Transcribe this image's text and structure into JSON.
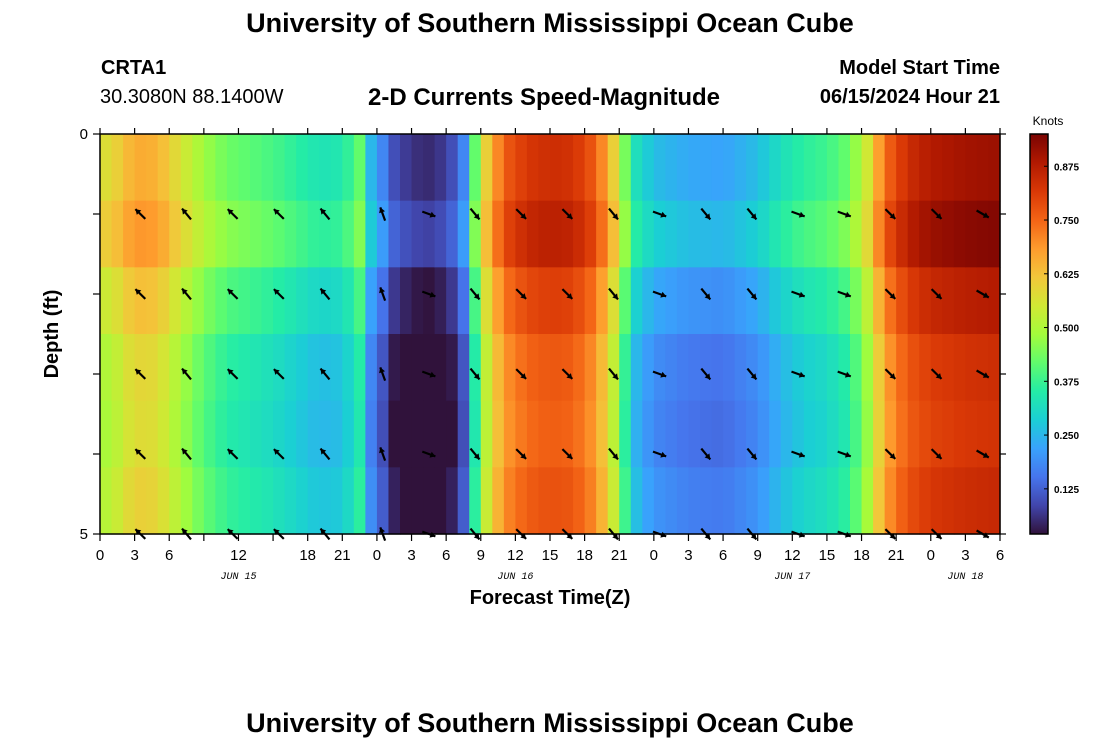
{
  "header": {
    "main_title": "University of Southern Mississippi Ocean Cube",
    "station_name": "CRTA1",
    "station_coords": "30.3080N  88.1400W",
    "chart_title": "2-D Currents Speed-Magnitude",
    "start_label": "Model Start Time",
    "start_value": "06/15/2024 Hour 21"
  },
  "footer": {
    "title": "University of Southern Mississippi Ocean Cube"
  },
  "chart_data": {
    "type": "heatmap",
    "title": "2-D Currents Speed-Magnitude",
    "xlabel": "Forecast Time(Z)",
    "ylabel": "Depth (ft)",
    "x_unit": "forecast hour (hours since 2024-06-15 00Z)",
    "x_range": [
      0,
      78
    ],
    "x_tick_hours": [
      0,
      3,
      6,
      9,
      12,
      15,
      18,
      21,
      24,
      27,
      30,
      33,
      36,
      39,
      42,
      45,
      48,
      51,
      54,
      57,
      60,
      63,
      66,
      69,
      72,
      75,
      78
    ],
    "x_tick_labels": [
      "0",
      "3",
      "6",
      "12",
      "18",
      "21",
      "0",
      "3",
      "6",
      "9",
      "12",
      "15",
      "18",
      "21",
      "0",
      "3",
      "6",
      "9",
      "12",
      "15",
      "18",
      "21",
      "0",
      "3",
      "6"
    ],
    "x_tick_label_hours": [
      0,
      3,
      6,
      12,
      18,
      21,
      24,
      27,
      30,
      33,
      36,
      39,
      42,
      45,
      48,
      51,
      54,
      57,
      60,
      63,
      66,
      69,
      72,
      75,
      78
    ],
    "date_labels": [
      {
        "label": "JUN 15",
        "hour": 12
      },
      {
        "label": "JUN 16",
        "hour": 36
      },
      {
        "label": "JUN 17",
        "hour": 60
      },
      {
        "label": "JUN 18",
        "hour": 75
      }
    ],
    "y_range": [
      0,
      5
    ],
    "y_ticks": [
      0,
      1,
      2,
      3,
      4,
      5
    ],
    "y_tick_labels": [
      "0",
      "",
      "",
      "",
      "",
      "5"
    ],
    "colorbar": {
      "title": "Knots",
      "range": [
        0.02,
        0.95
      ],
      "ticks": [
        0.125,
        0.25,
        0.375,
        0.5,
        0.625,
        0.75,
        0.875
      ],
      "tick_labels": [
        "0.125",
        "0.250",
        "0.375",
        "0.500",
        "0.625",
        "0.750",
        "0.875"
      ],
      "stops": [
        "#30123b",
        "#4145ab",
        "#4675ed",
        "#39a2fc",
        "#1bcfd4",
        "#24eca6",
        "#61fc6c",
        "#a4fc3b",
        "#d1e834",
        "#f3c63a",
        "#fe9b2d",
        "#f36315",
        "#d93806",
        "#b11901",
        "#7a0402"
      ]
    },
    "surface_speed_knots": [
      {
        "hour": 0,
        "value": 0.56
      },
      {
        "hour": 1.5,
        "value": 0.6
      },
      {
        "hour": 3,
        "value": 0.66
      },
      {
        "hour": 5,
        "value": 0.65
      },
      {
        "hour": 7,
        "value": 0.56
      },
      {
        "hour": 9,
        "value": 0.48
      },
      {
        "hour": 11,
        "value": 0.43
      },
      {
        "hour": 13,
        "value": 0.41
      },
      {
        "hour": 15,
        "value": 0.39
      },
      {
        "hour": 17,
        "value": 0.36
      },
      {
        "hour": 19,
        "value": 0.33
      },
      {
        "hour": 21,
        "value": 0.34
      },
      {
        "hour": 22.5,
        "value": 0.42
      },
      {
        "hour": 23.5,
        "value": 0.25
      },
      {
        "hour": 24.5,
        "value": 0.18
      },
      {
        "hour": 25.5,
        "value": 0.1
      },
      {
        "hour": 27,
        "value": 0.06
      },
      {
        "hour": 29,
        "value": 0.05
      },
      {
        "hour": 30.5,
        "value": 0.1
      },
      {
        "hour": 31.5,
        "value": 0.18
      },
      {
        "hour": 32.5,
        "value": 0.42
      },
      {
        "hour": 33.5,
        "value": 0.6
      },
      {
        "hour": 35,
        "value": 0.76
      },
      {
        "hour": 37,
        "value": 0.82
      },
      {
        "hour": 39,
        "value": 0.84
      },
      {
        "hour": 41,
        "value": 0.83
      },
      {
        "hour": 43,
        "value": 0.76
      },
      {
        "hour": 44.5,
        "value": 0.6
      },
      {
        "hour": 45.5,
        "value": 0.44
      },
      {
        "hour": 46.5,
        "value": 0.32
      },
      {
        "hour": 48,
        "value": 0.26
      },
      {
        "hour": 51,
        "value": 0.23
      },
      {
        "hour": 54,
        "value": 0.22
      },
      {
        "hour": 57,
        "value": 0.26
      },
      {
        "hour": 59,
        "value": 0.32
      },
      {
        "hour": 61,
        "value": 0.36
      },
      {
        "hour": 63,
        "value": 0.38
      },
      {
        "hour": 65,
        "value": 0.43
      },
      {
        "hour": 66.5,
        "value": 0.55
      },
      {
        "hour": 68,
        "value": 0.74
      },
      {
        "hour": 70,
        "value": 0.84
      },
      {
        "hour": 72,
        "value": 0.88
      },
      {
        "hour": 75,
        "value": 0.9
      },
      {
        "hour": 78,
        "value": 0.91
      }
    ],
    "speed_depth_adjust": [
      0.0,
      0.03,
      -0.03,
      -0.07,
      -0.08,
      -0.06
    ],
    "vector_rows_depth_ft": [
      1,
      2,
      3,
      4,
      5
    ],
    "vector_columns": [
      {
        "hour": 3.5,
        "dir_deg": 315
      },
      {
        "hour": 7.5,
        "dir_deg": 320
      },
      {
        "hour": 11.5,
        "dir_deg": 315
      },
      {
        "hour": 15.5,
        "dir_deg": 315
      },
      {
        "hour": 19.5,
        "dir_deg": 320
      },
      {
        "hour": 24.5,
        "dir_deg": 340
      },
      {
        "hour": 28.5,
        "dir_deg": 110
      },
      {
        "hour": 32.5,
        "dir_deg": 140
      },
      {
        "hour": 36.5,
        "dir_deg": 135
      },
      {
        "hour": 40.5,
        "dir_deg": 135
      },
      {
        "hour": 44.5,
        "dir_deg": 140
      },
      {
        "hour": 48.5,
        "dir_deg": 110
      },
      {
        "hour": 52.5,
        "dir_deg": 140
      },
      {
        "hour": 56.5,
        "dir_deg": 140
      },
      {
        "hour": 60.5,
        "dir_deg": 110
      },
      {
        "hour": 64.5,
        "dir_deg": 110
      },
      {
        "hour": 68.5,
        "dir_deg": 135
      },
      {
        "hour": 72.5,
        "dir_deg": 135
      },
      {
        "hour": 76.5,
        "dir_deg": 120
      }
    ]
  }
}
